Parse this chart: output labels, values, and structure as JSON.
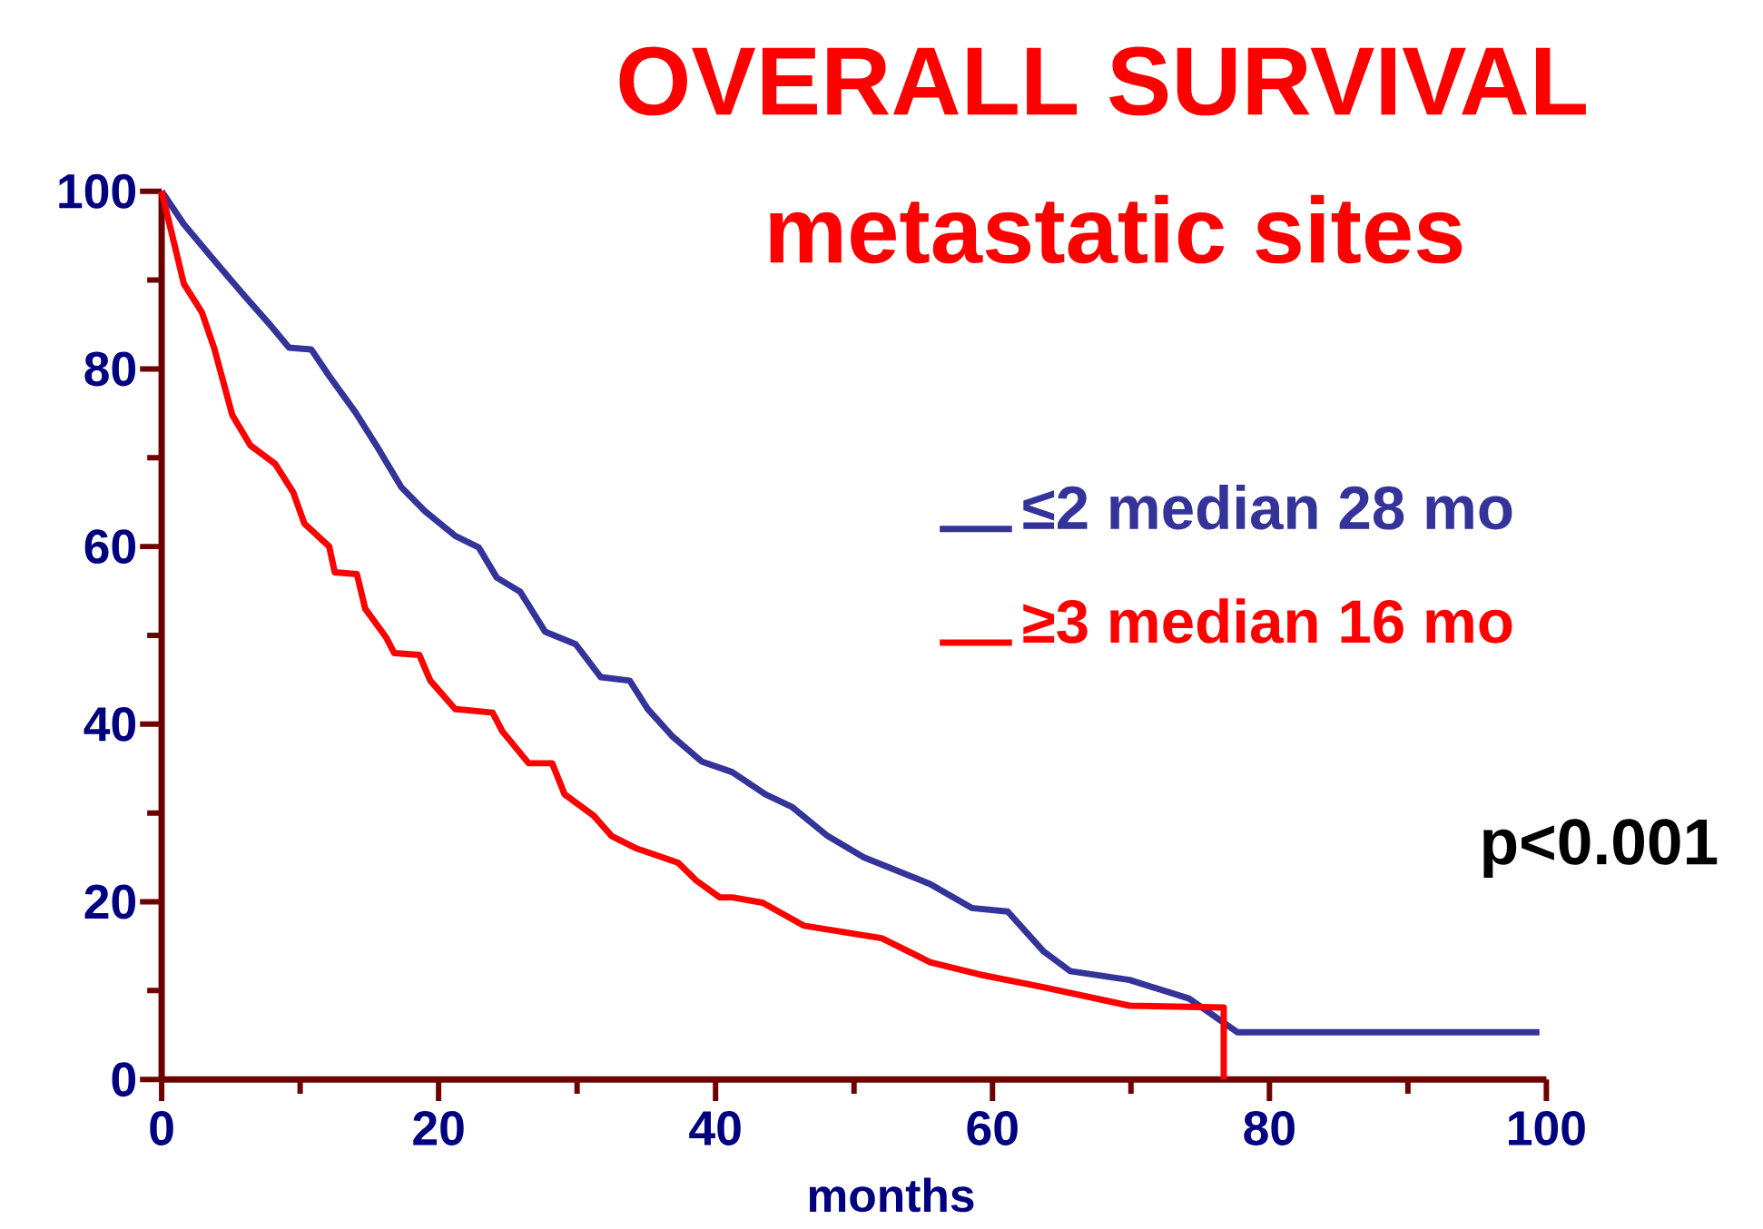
{
  "chart_data": {
    "type": "line",
    "title": "OVERALL SURVIVAL",
    "subtitle": "metastatic sites",
    "xlabel": "months",
    "xlim": [
      0,
      100
    ],
    "ylim": [
      0,
      100
    ],
    "xticks": [
      0,
      20,
      40,
      60,
      80,
      100
    ],
    "yticks": [
      0,
      20,
      40,
      60,
      80,
      100
    ],
    "legend": "right",
    "annotations": [
      "p<0.001"
    ],
    "series": [
      {
        "name": "≤2  median 28 mo",
        "color": "#333399",
        "x": [
          0,
          1.6,
          3.8,
          6.0,
          7.7,
          9.2,
          10.8,
          12.1,
          14.0,
          15.5,
          17.3,
          19.0,
          21.2,
          22.9,
          24.2,
          25.9,
          27.7,
          29.9,
          31.7,
          33.8,
          35.1,
          36.9,
          39.0,
          41.2,
          43.6,
          45.5,
          48.1,
          50.7,
          55.5,
          58.5,
          61.1,
          63.7,
          65.6,
          69.9,
          74.2,
          77.7,
          99.5
        ],
        "values": [
          100,
          96.3,
          92.2,
          88.2,
          85.2,
          82.4,
          82.2,
          79.2,
          75.1,
          71.4,
          66.7,
          64.0,
          61.2,
          59.9,
          56.5,
          54.9,
          50.4,
          49.0,
          45.3,
          44.9,
          41.7,
          38.6,
          35.8,
          34.6,
          32.1,
          30.7,
          27.4,
          25.0,
          22.0,
          19.3,
          18.9,
          14.4,
          12.2,
          11.2,
          9.1,
          5.3,
          5.3
        ]
      },
      {
        "name": "≥3  median 16 mo",
        "color": "#ff0000",
        "x": [
          0,
          1.6,
          2.9,
          3.8,
          5.1,
          6.4,
          8.2,
          9.5,
          10.3,
          12.1,
          12.5,
          14.1,
          14.7,
          16.2,
          16.8,
          18.6,
          19.4,
          21.2,
          23.9,
          24.6,
          26.5,
          28.2,
          29.1,
          31.2,
          32.5,
          34.3,
          37.3,
          38.6,
          40.3,
          41.2,
          43.4,
          46.4,
          52.0,
          55.5,
          59.1,
          63.6,
          69.9,
          76.7,
          76.7
        ],
        "values": [
          100,
          89.6,
          86.4,
          82.3,
          74.8,
          71.4,
          69.3,
          66.1,
          62.6,
          60.0,
          57.1,
          56.9,
          53.0,
          49.8,
          48.0,
          47.8,
          44.9,
          41.7,
          41.3,
          39.2,
          35.6,
          35.6,
          32.1,
          29.7,
          27.4,
          26.0,
          24.4,
          22.4,
          20.5,
          20.5,
          19.9,
          17.3,
          15.9,
          13.2,
          11.8,
          10.4,
          8.3,
          8.1,
          0
        ]
      }
    ]
  }
}
